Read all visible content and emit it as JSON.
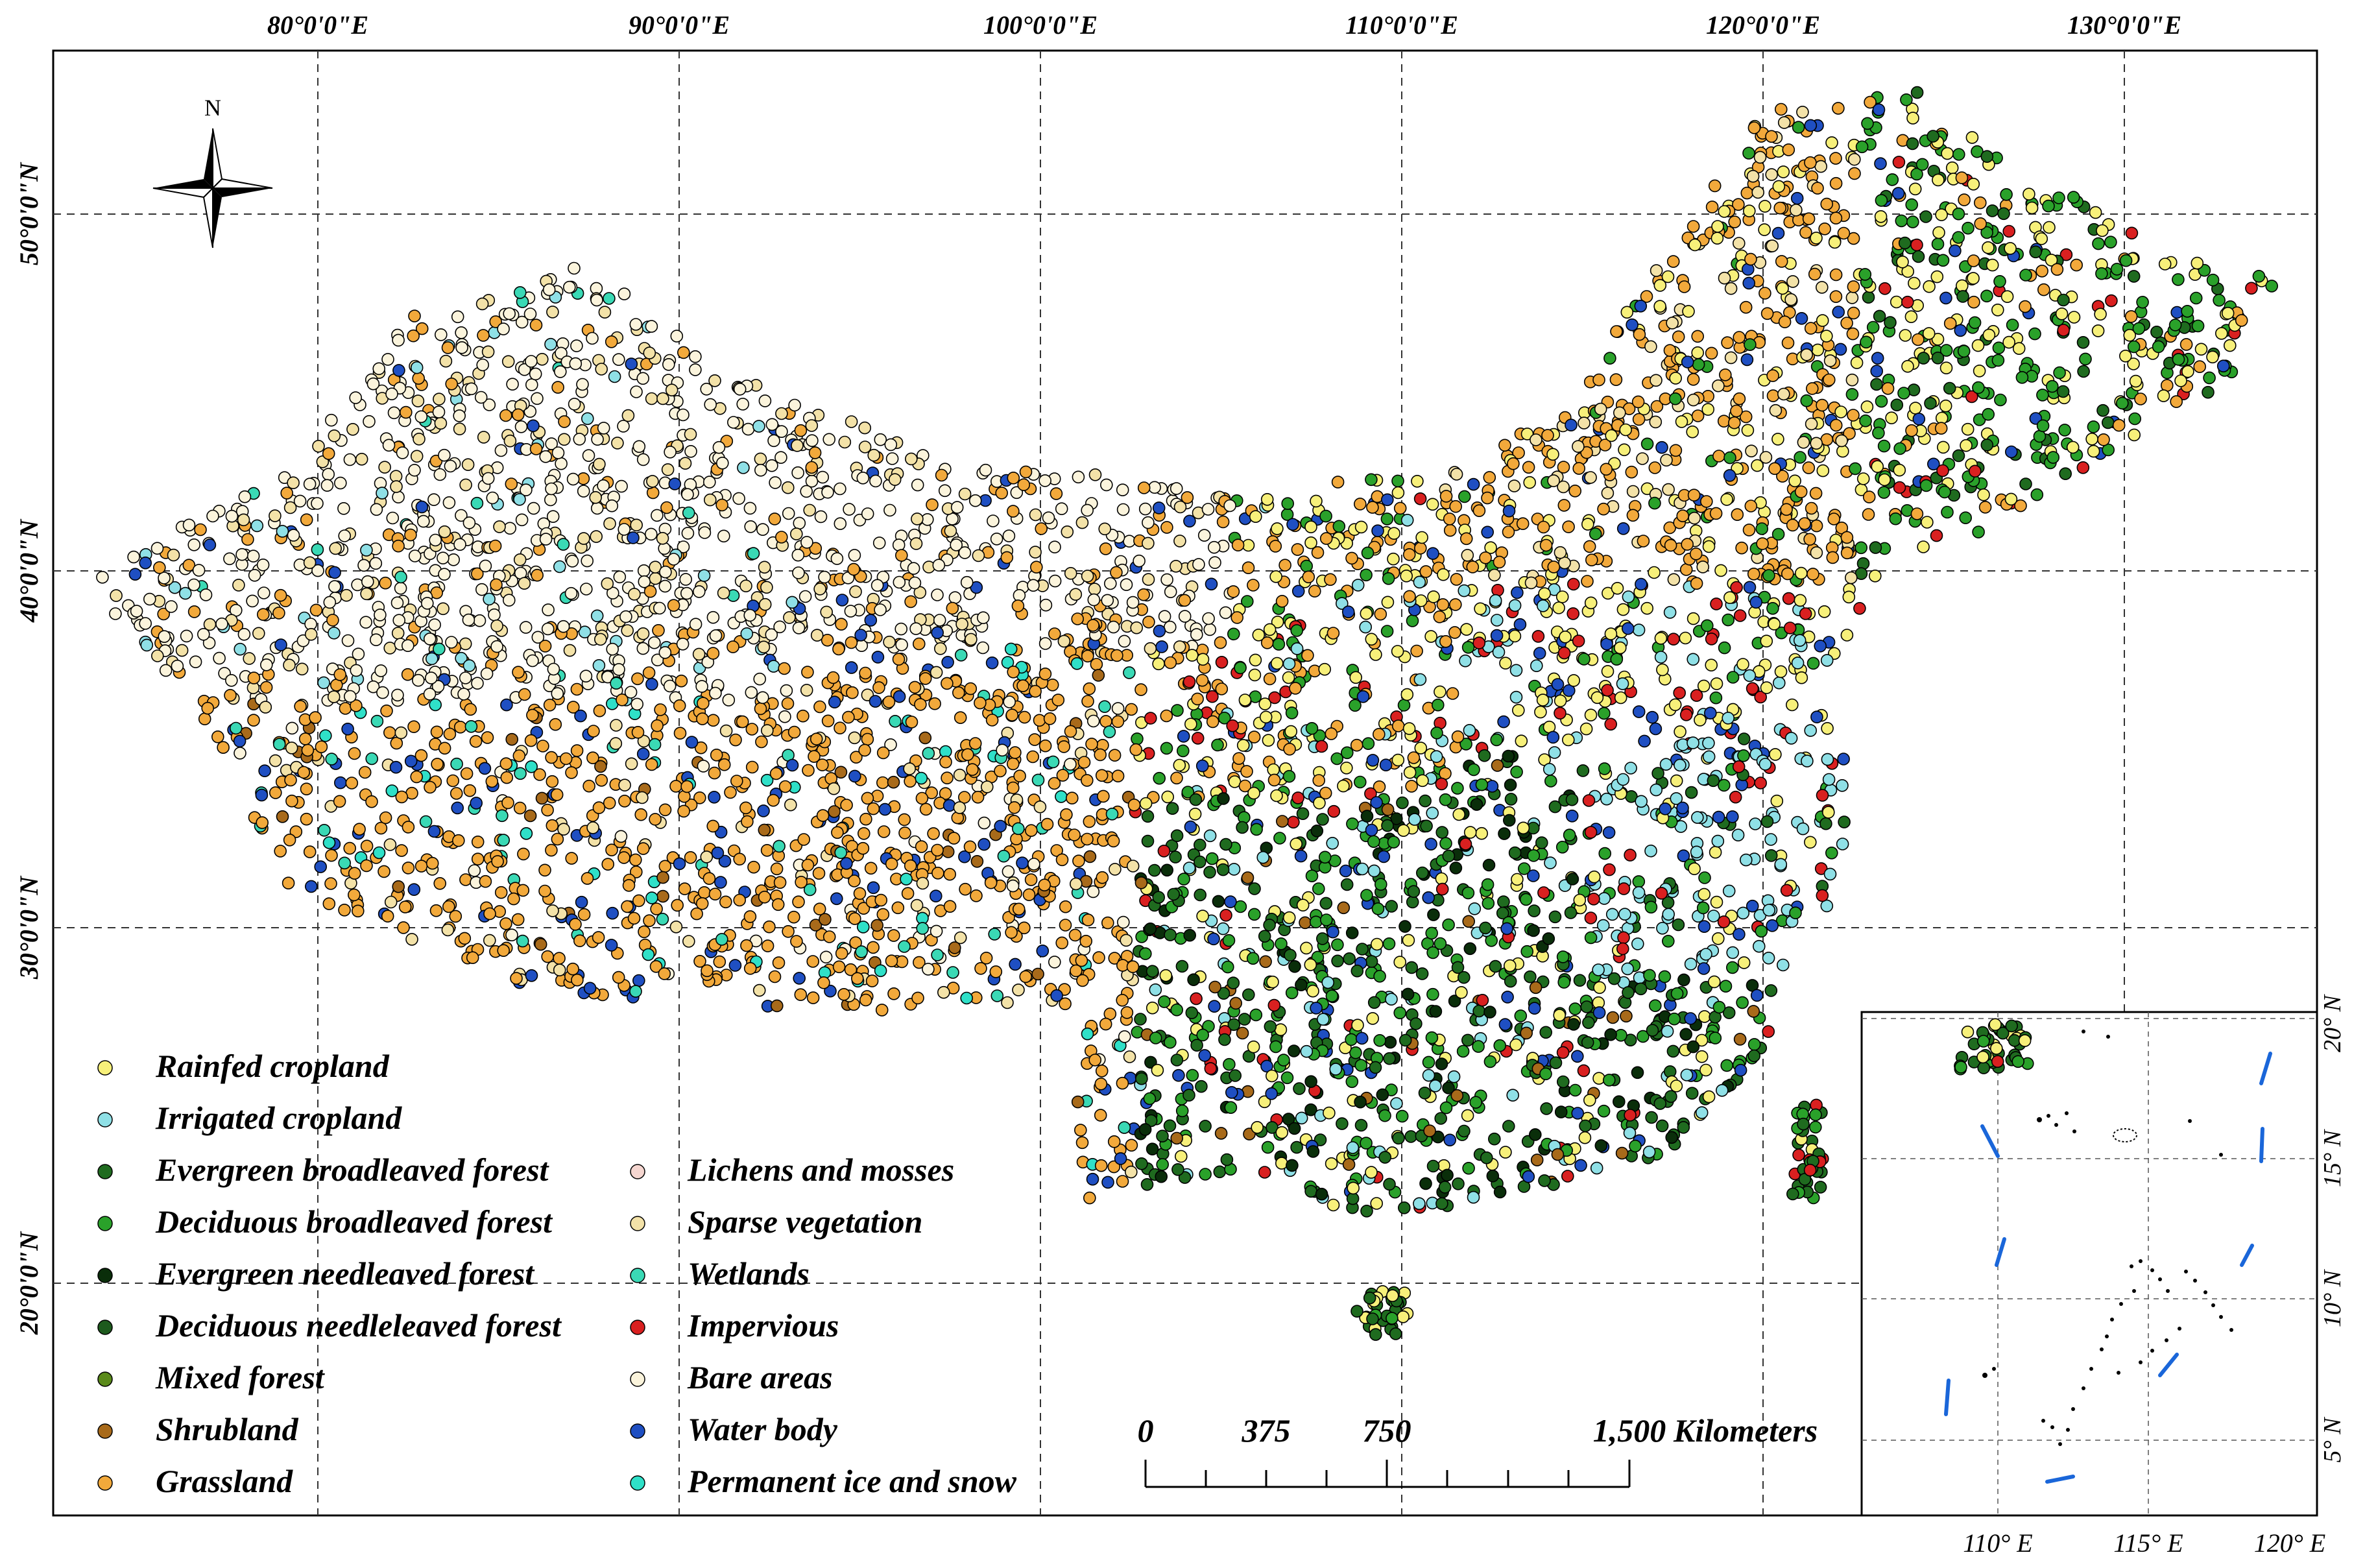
{
  "map": {
    "top_ticks": [
      "80°0'0\"E",
      "90°0'0\"E",
      "100°0'0\"E",
      "110°0'0\"E",
      "120°0'0\"E",
      "130°0'0\"E"
    ],
    "left_ticks": [
      "50°0'0\"N",
      "40°0'0\"N",
      "30°0'0\"N",
      "20°0'0\"N"
    ],
    "north_label": "N"
  },
  "legend": {
    "column1": [
      {
        "label": "Rainfed cropland",
        "color": "#f7f07a"
      },
      {
        "label": "Irrigated cropland",
        "color": "#8fe0e6"
      },
      {
        "label": "Evergreen broadleaved forest",
        "color": "#1f6b1f"
      },
      {
        "label": "Deciduous broadleaved forest",
        "color": "#2aa12a"
      },
      {
        "label": "Evergreen needleaved forest",
        "color": "#0a2e0a"
      },
      {
        "label": "Deciduous needleleaved forest",
        "color": "#1d5a1d"
      },
      {
        "label": "Mixed forest",
        "color": "#5a8a1a"
      },
      {
        "label": "Shrubland",
        "color": "#a86a1a"
      },
      {
        "label": "Grassland",
        "color": "#f2a93b"
      }
    ],
    "column2": [
      {
        "label": "Lichens and mosses",
        "color": "#f5d6d0"
      },
      {
        "label": "Sparse vegetation",
        "color": "#f3e2a8"
      },
      {
        "label": "Wetlands",
        "color": "#3ad9b5"
      },
      {
        "label": "Impervious",
        "color": "#d92020"
      },
      {
        "label": "Bare areas",
        "color": "#fbf4dc"
      },
      {
        "label": "Water body",
        "color": "#1f4fc2"
      },
      {
        "label": "Permanent ice and snow",
        "color": "#2fe0c8"
      }
    ]
  },
  "scale_bar": {
    "labels": [
      "0",
      "375",
      "750",
      "1,500"
    ],
    "unit": "Kilometers"
  },
  "inset": {
    "bottom_ticks": [
      "110° E",
      "115° E",
      "120° E"
    ],
    "right_ticks": [
      "20° N",
      "15° N",
      "10° N",
      "5° N"
    ]
  },
  "colors": {
    "frame": "#000000",
    "grid": "#333333",
    "inset_boundary": "#1a66d9"
  }
}
